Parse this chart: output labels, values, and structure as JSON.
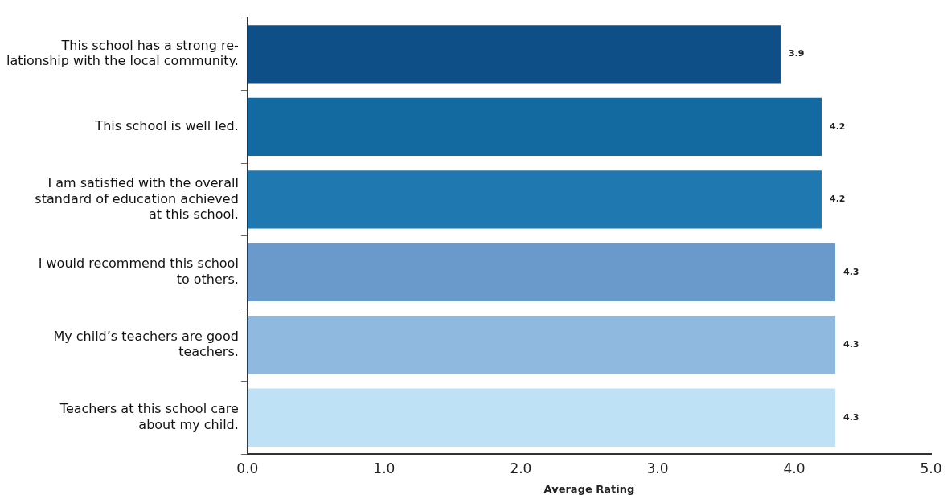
{
  "chart_data": {
    "type": "bar",
    "orientation": "horizontal",
    "xlabel": "Average Rating",
    "categories": [
      "This school has a strong re-\nlationship with the local community.",
      "This school is well led.",
      "I am satisfied with the overall\nstandard of education achieved\nat this school.",
      "I would recommend this school\nto others.",
      "My child’s teachers are good\nteachers.",
      "Teachers at this school care\nabout my child."
    ],
    "values": [
      3.9,
      4.2,
      4.2,
      4.3,
      4.3,
      4.3
    ],
    "colors": [
      "#0d4f86",
      "#126aa0",
      "#1f79b0",
      "#6a9acb",
      "#8fb9de",
      "#bfe1f6"
    ],
    "xlim": [
      0,
      5
    ],
    "xticks": [
      {
        "value": 0,
        "label": "0.0"
      },
      {
        "value": 1,
        "label": "1.0"
      },
      {
        "value": 2,
        "label": "2.0"
      },
      {
        "value": 3,
        "label": "3.0"
      },
      {
        "value": 4,
        "label": "4.0"
      },
      {
        "value": 5,
        "label": "5.0"
      }
    ],
    "data_labels": true,
    "grid": false,
    "legend": false
  }
}
